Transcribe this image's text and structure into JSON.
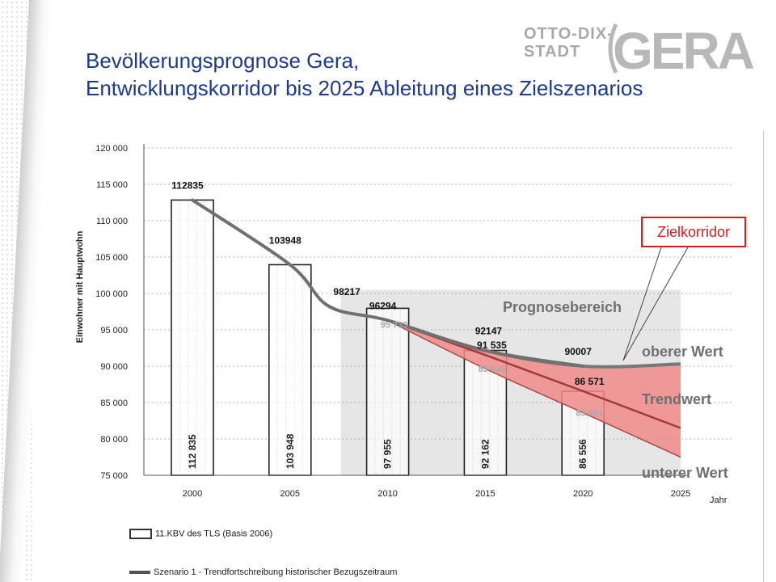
{
  "header": {
    "title_line1": "Bevölkerungsprognose Gera,",
    "title_line2": "Entwicklungskorridor bis 2025 Ableitung eines Zielszenarios"
  },
  "logo": {
    "line1": "OTTO-DIX-",
    "line2": "STADT",
    "name": "GERA"
  },
  "annotations": {
    "prognosebereich": "Prognosebereich",
    "oberer": "oberer Wert",
    "trend": "Trendwert",
    "unterer": "unterer Wert",
    "zielkorridor": "Zielkorridor"
  },
  "legend": {
    "bars": "11.KBV des TLS (Basis 2006)",
    "line": "Szenario 1 - Trendfortschreibung historischer Bezugszeitraum"
  },
  "colors": {
    "title": "#1d3a8c",
    "corridor_fill": "#ef8a8a",
    "trend_line": "#a33a3a",
    "upper_line": "#777777",
    "history_line": "#707070",
    "callout": "#d01f1f"
  },
  "chart_data": {
    "type": "bar",
    "ylabel": "Einwohner mit Hauptwohn",
    "xlabel": "Jahr",
    "ylim": [
      75000,
      120000
    ],
    "yticks": [
      "75 000",
      "80 000",
      "85 000",
      "90 000",
      "95 000",
      "100 000",
      "105 000",
      "110 000",
      "115 000",
      "120 000"
    ],
    "xlim": [
      2000,
      2025
    ],
    "xticks": [
      "2000",
      "2005",
      "2010",
      "2015",
      "2020",
      "2025"
    ],
    "grid": true,
    "bars": [
      {
        "year": 2000,
        "value": 112835,
        "inner_label": "112 835"
      },
      {
        "year": 2005,
        "value": 103948,
        "inner_label": "103 948"
      },
      {
        "year": 2010,
        "value": 97955,
        "inner_label": "97 955",
        "extra_label": "95 733",
        "extra_value": 95733
      },
      {
        "year": 2015,
        "value": 92162,
        "inner_label": "92 162",
        "top_label": "91 535",
        "top_value": 91535,
        "extra_label": "89 646",
        "extra_value": 89646
      },
      {
        "year": 2020,
        "value": 86556,
        "inner_label": "86 556",
        "top_label": "86 571",
        "top_value": 86571,
        "extra_label": "83 601",
        "extra_value": 83601
      }
    ],
    "series": [
      {
        "name": "Szenario 1 - Trendfortschreibung historischer Bezugszeitraum",
        "points": [
          {
            "x": 2000,
            "y": 112835
          },
          {
            "x": 2005,
            "y": 103948
          },
          {
            "x": 2007,
            "y": 98217
          },
          {
            "x": 2010,
            "y": 96294
          },
          {
            "x": 2015,
            "y": 92147
          },
          {
            "x": 2020,
            "y": 90007
          }
        ]
      },
      {
        "name": "oberer Wert",
        "points": [
          {
            "x": 2010,
            "y": 96294
          },
          {
            "x": 2015,
            "y": 92147
          },
          {
            "x": 2020,
            "y": 90007
          },
          {
            "x": 2025,
            "y": 90300
          }
        ]
      },
      {
        "name": "Trendwert",
        "points": [
          {
            "x": 2010,
            "y": 96294
          },
          {
            "x": 2015,
            "y": 91535
          },
          {
            "x": 2020,
            "y": 86571
          },
          {
            "x": 2025,
            "y": 81500
          }
        ]
      },
      {
        "name": "unterer Wert",
        "points": [
          {
            "x": 2010,
            "y": 96294
          },
          {
            "x": 2015,
            "y": 89646
          },
          {
            "x": 2020,
            "y": 83601
          },
          {
            "x": 2025,
            "y": 77500
          }
        ]
      }
    ],
    "value_labels": [
      {
        "text": "112835",
        "x": 2000,
        "y": 112835
      },
      {
        "text": "103948",
        "x": 2005,
        "y": 103948
      },
      {
        "text": "98217",
        "x": 2007,
        "y": 98217
      },
      {
        "text": "96294",
        "x": 2010,
        "y": 96294
      },
      {
        "text": "92147",
        "x": 2015,
        "y": 92147
      },
      {
        "text": "90007",
        "x": 2020,
        "y": 90007
      }
    ],
    "prognose_region": {
      "x_from": 2010,
      "x_to": 2025,
      "y_from": 75000,
      "y_to": 100500
    }
  }
}
